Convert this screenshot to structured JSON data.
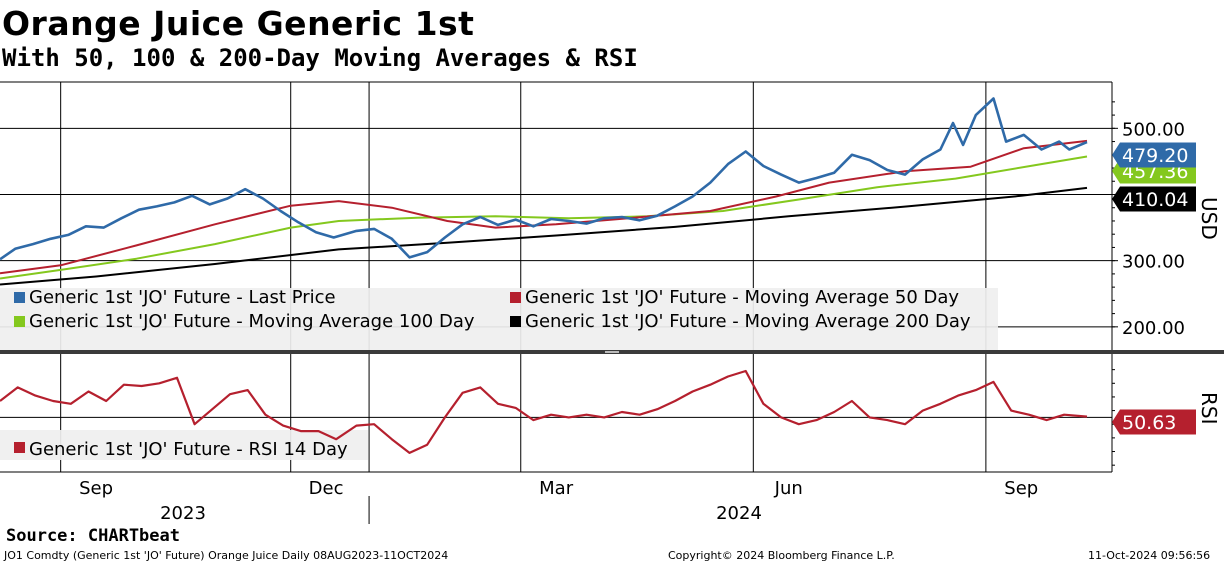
{
  "header": {
    "title": "Orange Juice Generic 1st",
    "subtitle": "With 50, 100 & 200-Day Moving Averages & RSI"
  },
  "footer": {
    "source": "Source: CHARTbeat",
    "ticker_info": "JO1 Comdty (Generic 1st 'JO' Future) Orange Juice  Daily 08AUG2023-11OCT2024",
    "copyright": "Copyright© 2024 Bloomberg Finance L.P.",
    "timestamp": "11-Oct-2024 09:56:56"
  },
  "colors": {
    "last_price": "#2f6aa8",
    "ma50": "#b5202e",
    "ma100": "#84c81e",
    "ma200": "#000000",
    "rsi": "#b5202e",
    "grid": "#000000",
    "legend_bg": "#efefef"
  },
  "chart_data": [
    {
      "type": "line",
      "panel": "price",
      "ylabel": "USD",
      "ylim": [
        165,
        570
      ],
      "yticks": [
        200,
        300,
        400,
        500
      ],
      "ytick_labels": [
        "200.00",
        "300.00",
        "",
        "500.00"
      ],
      "x_range": [
        "2023-08-08",
        "2024-10-11"
      ],
      "x_month_ticks": [
        "Sep",
        "Dec",
        "Mar",
        "Jun",
        "Sep"
      ],
      "x_year_labels": [
        "2023",
        "2024"
      ],
      "series": [
        {
          "name": "Generic 1st 'JO' Future - Last Price",
          "color_key": "last_price",
          "last_value": "479.20",
          "points": [
            [
              "2023-08-08",
              302
            ],
            [
              "2023-08-14",
              318
            ],
            [
              "2023-08-21",
              325
            ],
            [
              "2023-08-28",
              333
            ],
            [
              "2023-09-04",
              339
            ],
            [
              "2023-09-11",
              352
            ],
            [
              "2023-09-18",
              350
            ],
            [
              "2023-09-25",
              364
            ],
            [
              "2023-10-02",
              377
            ],
            [
              "2023-10-09",
              382
            ],
            [
              "2023-10-16",
              388
            ],
            [
              "2023-10-23",
              398
            ],
            [
              "2023-10-30",
              385
            ],
            [
              "2023-11-06",
              394
            ],
            [
              "2023-11-13",
              408
            ],
            [
              "2023-11-20",
              394
            ],
            [
              "2023-11-27",
              375
            ],
            [
              "2023-12-04",
              358
            ],
            [
              "2023-12-11",
              343
            ],
            [
              "2023-12-18",
              335
            ],
            [
              "2023-12-27",
              345
            ],
            [
              "2024-01-03",
              348
            ],
            [
              "2024-01-10",
              333
            ],
            [
              "2024-01-17",
              305
            ],
            [
              "2024-01-24",
              313
            ],
            [
              "2024-01-31",
              335
            ],
            [
              "2024-02-07",
              355
            ],
            [
              "2024-02-14",
              366
            ],
            [
              "2024-02-21",
              354
            ],
            [
              "2024-02-28",
              362
            ],
            [
              "2024-03-06",
              352
            ],
            [
              "2024-03-13",
              363
            ],
            [
              "2024-03-20",
              360
            ],
            [
              "2024-03-27",
              356
            ],
            [
              "2024-04-03",
              364
            ],
            [
              "2024-04-10",
              366
            ],
            [
              "2024-04-17",
              361
            ],
            [
              "2024-04-24",
              368
            ],
            [
              "2024-05-01",
              382
            ],
            [
              "2024-05-08",
              397
            ],
            [
              "2024-05-15",
              418
            ],
            [
              "2024-05-22",
              446
            ],
            [
              "2024-05-29",
              465
            ],
            [
              "2024-06-05",
              443
            ],
            [
              "2024-06-12",
              430
            ],
            [
              "2024-06-19",
              418
            ],
            [
              "2024-06-26",
              425
            ],
            [
              "2024-07-03",
              433
            ],
            [
              "2024-07-10",
              460
            ],
            [
              "2024-07-17",
              452
            ],
            [
              "2024-07-24",
              437
            ],
            [
              "2024-07-31",
              430
            ],
            [
              "2024-08-07",
              453
            ],
            [
              "2024-08-14",
              468
            ],
            [
              "2024-08-19",
              508
            ],
            [
              "2024-08-23",
              475
            ],
            [
              "2024-08-28",
              520
            ],
            [
              "2024-09-04",
              545
            ],
            [
              "2024-09-09",
              480
            ],
            [
              "2024-09-16",
              490
            ],
            [
              "2024-09-23",
              468
            ],
            [
              "2024-09-30",
              480
            ],
            [
              "2024-10-04",
              468
            ],
            [
              "2024-10-11",
              479.2
            ]
          ]
        },
        {
          "name": "Generic 1st 'JO' Future - Moving Average 50 Day",
          "color_key": "ma50",
          "last_value": "",
          "points": [
            [
              "2023-08-08",
              281
            ],
            [
              "2023-09-01",
              293
            ],
            [
              "2023-10-01",
              323
            ],
            [
              "2023-11-01",
              355
            ],
            [
              "2023-12-01",
              383
            ],
            [
              "2023-12-20",
              390
            ],
            [
              "2024-01-10",
              380
            ],
            [
              "2024-02-01",
              360
            ],
            [
              "2024-02-20",
              350
            ],
            [
              "2024-03-15",
              355
            ],
            [
              "2024-04-15",
              365
            ],
            [
              "2024-05-15",
              375
            ],
            [
              "2024-06-10",
              397
            ],
            [
              "2024-07-01",
              418
            ],
            [
              "2024-07-31",
              435
            ],
            [
              "2024-08-26",
              442
            ],
            [
              "2024-09-16",
              470
            ],
            [
              "2024-10-11",
              481
            ]
          ]
        },
        {
          "name": "Generic 1st 'JO' Future - Moving Average 100 Day",
          "color_key": "ma100",
          "last_value": "457.36",
          "points": [
            [
              "2023-08-08",
              273
            ],
            [
              "2023-09-01",
              286
            ],
            [
              "2023-10-01",
              303
            ],
            [
              "2023-11-01",
              325
            ],
            [
              "2023-12-01",
              350
            ],
            [
              "2023-12-20",
              360
            ],
            [
              "2024-01-20",
              365
            ],
            [
              "2024-02-20",
              367
            ],
            [
              "2024-03-20",
              364
            ],
            [
              "2024-04-20",
              367
            ],
            [
              "2024-05-20",
              375
            ],
            [
              "2024-06-20",
              393
            ],
            [
              "2024-07-20",
              411
            ],
            [
              "2024-08-20",
              424
            ],
            [
              "2024-09-20",
              444
            ],
            [
              "2024-10-11",
              457.36
            ]
          ]
        },
        {
          "name": "Generic 1st 'JO' Future - Moving Average 200 Day",
          "color_key": "ma200",
          "last_value": "410.04",
          "points": [
            [
              "2023-08-08",
              264
            ],
            [
              "2023-09-15",
              276
            ],
            [
              "2023-11-01",
              295
            ],
            [
              "2023-12-20",
              317
            ],
            [
              "2024-02-01",
              327
            ],
            [
              "2024-03-15",
              338
            ],
            [
              "2024-05-01",
              351
            ],
            [
              "2024-06-15",
              367
            ],
            [
              "2024-08-01",
              382
            ],
            [
              "2024-09-15",
              398
            ],
            [
              "2024-10-11",
              410.04
            ]
          ]
        }
      ]
    },
    {
      "type": "line",
      "panel": "rsi",
      "ylabel": "RSI",
      "ylim": [
        10,
        95
      ],
      "series": [
        {
          "name": "Generic 1st 'JO' Future - RSI 14 Day",
          "color_key": "rsi",
          "last_value": "50.63",
          "points": [
            [
              "2023-08-08",
              62
            ],
            [
              "2023-08-15",
              72
            ],
            [
              "2023-08-22",
              66
            ],
            [
              "2023-08-29",
              62
            ],
            [
              "2023-09-05",
              60
            ],
            [
              "2023-09-12",
              69
            ],
            [
              "2023-09-19",
              62
            ],
            [
              "2023-09-26",
              74
            ],
            [
              "2023-10-03",
              73
            ],
            [
              "2023-10-10",
              75
            ],
            [
              "2023-10-17",
              79
            ],
            [
              "2023-10-24",
              45
            ],
            [
              "2023-10-31",
              56
            ],
            [
              "2023-11-07",
              67
            ],
            [
              "2023-11-14",
              70
            ],
            [
              "2023-11-21",
              52
            ],
            [
              "2023-11-28",
              44
            ],
            [
              "2023-12-05",
              40
            ],
            [
              "2023-12-12",
              40
            ],
            [
              "2023-12-19",
              34
            ],
            [
              "2023-12-27",
              44
            ],
            [
              "2024-01-03",
              45
            ],
            [
              "2024-01-10",
              34
            ],
            [
              "2024-01-17",
              24
            ],
            [
              "2024-01-24",
              30
            ],
            [
              "2024-01-31",
              50
            ],
            [
              "2024-02-07",
              68
            ],
            [
              "2024-02-14",
              72
            ],
            [
              "2024-02-21",
              60
            ],
            [
              "2024-02-28",
              57
            ],
            [
              "2024-03-06",
              48
            ],
            [
              "2024-03-13",
              52
            ],
            [
              "2024-03-20",
              50
            ],
            [
              "2024-03-27",
              52
            ],
            [
              "2024-04-03",
              50
            ],
            [
              "2024-04-10",
              54
            ],
            [
              "2024-04-17",
              52
            ],
            [
              "2024-04-24",
              56
            ],
            [
              "2024-05-01",
              62
            ],
            [
              "2024-05-08",
              69
            ],
            [
              "2024-05-15",
              74
            ],
            [
              "2024-05-22",
              80
            ],
            [
              "2024-05-29",
              84
            ],
            [
              "2024-06-05",
              60
            ],
            [
              "2024-06-12",
              50
            ],
            [
              "2024-06-19",
              45
            ],
            [
              "2024-06-26",
              48
            ],
            [
              "2024-07-03",
              54
            ],
            [
              "2024-07-10",
              62
            ],
            [
              "2024-07-17",
              50
            ],
            [
              "2024-07-24",
              48
            ],
            [
              "2024-07-31",
              45
            ],
            [
              "2024-08-07",
              55
            ],
            [
              "2024-08-14",
              60
            ],
            [
              "2024-08-21",
              66
            ],
            [
              "2024-08-28",
              70
            ],
            [
              "2024-09-04",
              76
            ],
            [
              "2024-09-11",
              55
            ],
            [
              "2024-09-18",
              52
            ],
            [
              "2024-09-25",
              48
            ],
            [
              "2024-10-02",
              52
            ],
            [
              "2024-10-11",
              50.63
            ]
          ]
        }
      ]
    }
  ]
}
